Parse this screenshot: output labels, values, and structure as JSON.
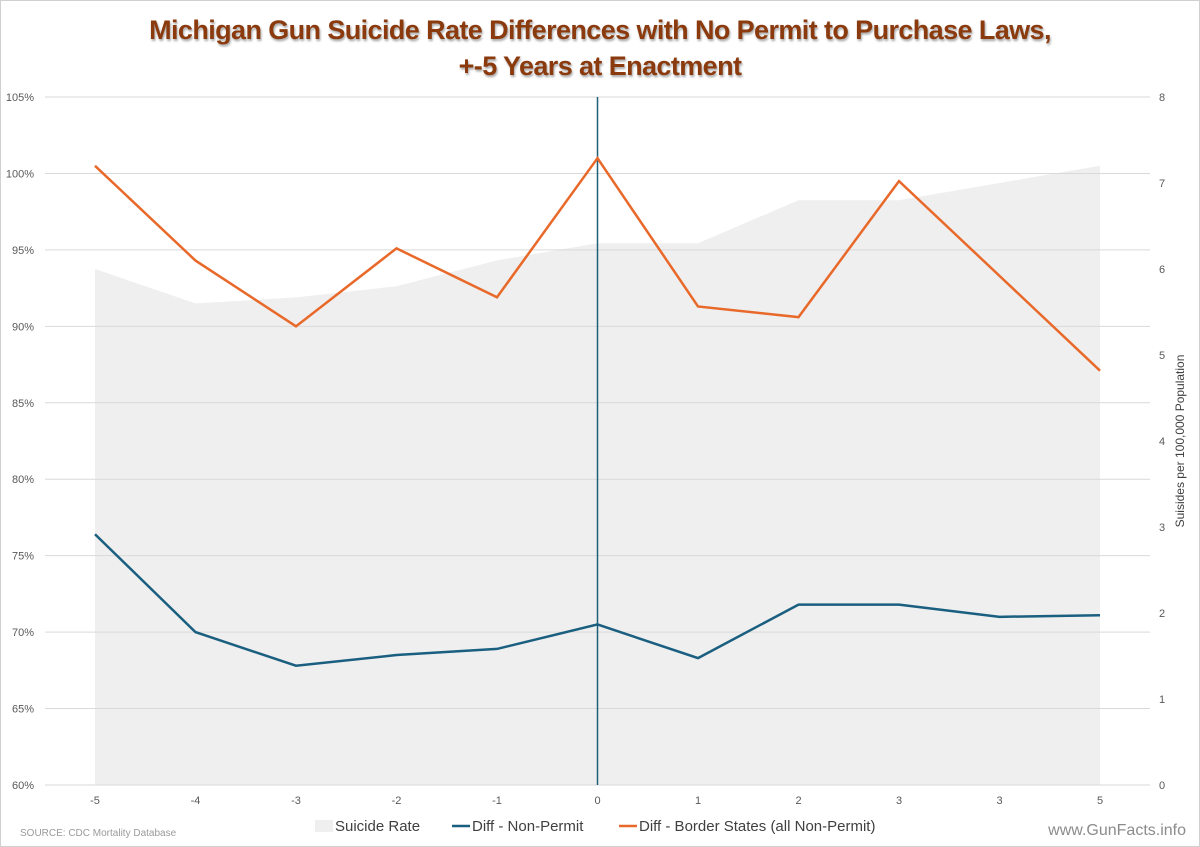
{
  "chart_data": {
    "type": "line",
    "title": "Michigan Gun Suicide Rate Differences with No Permit to Purchase Laws,",
    "subtitle": "+-5 Years at Enactment",
    "categories": [
      "-5",
      "-4",
      "-3",
      "-2",
      "-1",
      "0",
      "1",
      "2",
      "3",
      "3",
      "5"
    ],
    "xlabel": "",
    "ylabel_left": "",
    "ylabel_right": "Suisides per 100,000 Population",
    "ylim_left": [
      60,
      105
    ],
    "ylim_right": [
      0,
      8
    ],
    "yticks_left": [
      "60%",
      "65%",
      "70%",
      "75%",
      "80%",
      "85%",
      "90%",
      "95%",
      "100%",
      "105%"
    ],
    "yticks_right": [
      "0",
      "1",
      "2",
      "3",
      "4",
      "5",
      "6",
      "7",
      "8"
    ],
    "grid": true,
    "marker_line_at": "0",
    "series": [
      {
        "name": "Suicide Rate",
        "type": "area",
        "axis": "right",
        "color": "#efefef",
        "values": [
          6.0,
          5.6,
          5.67,
          5.8,
          6.1,
          6.3,
          6.3,
          6.8,
          6.8,
          7.0,
          7.2
        ]
      },
      {
        "name": "Diff - Non-Permit",
        "type": "line",
        "axis": "left",
        "color": "#1a5f80",
        "values": [
          76.4,
          70.0,
          67.8,
          68.5,
          68.9,
          70.5,
          68.3,
          71.8,
          71.8,
          71.0,
          71.1
        ]
      },
      {
        "name": "Diff - Border States (all Non-Permit)",
        "type": "line",
        "axis": "left",
        "color": "#e8692a",
        "values": [
          100.5,
          94.3,
          90.0,
          95.1,
          91.9,
          101.0,
          91.3,
          90.6,
          99.5,
          93.3,
          87.1
        ]
      }
    ],
    "legend_position": "bottom",
    "vline_color": "#1f5f78",
    "grid_color": "#d9d9d9"
  },
  "footer": {
    "source": "SOURCE: CDC Mortality Database",
    "watermark": "www.GunFacts.info"
  }
}
